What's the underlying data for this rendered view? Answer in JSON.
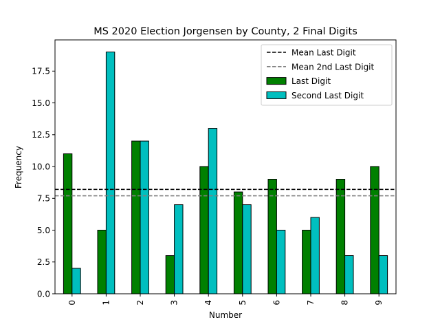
{
  "chart_data": {
    "type": "bar",
    "title": "MS 2020 Election Jorgensen by County, 2 Final Digits",
    "xlabel": "Number",
    "ylabel": "Frequency",
    "categories": [
      "0",
      "1",
      "2",
      "3",
      "4",
      "5",
      "6",
      "7",
      "8",
      "9"
    ],
    "ylim": [
      0,
      19.95
    ],
    "yticks": [
      0.0,
      2.5,
      5.0,
      7.5,
      10.0,
      12.5,
      15.0,
      17.5
    ],
    "ytick_labels": [
      "0.0",
      "2.5",
      "5.0",
      "7.5",
      "10.0",
      "12.5",
      "15.0",
      "17.5"
    ],
    "grid": false,
    "legend_position": "top-right",
    "series": [
      {
        "name": "Last Digit",
        "color": "#008000",
        "values": [
          11,
          5,
          12,
          3,
          10,
          8,
          9,
          5,
          9,
          10
        ]
      },
      {
        "name": "Second Last Digit",
        "color": "#00bfbf",
        "values": [
          2,
          19,
          12,
          7,
          13,
          7,
          5,
          6,
          3,
          3
        ]
      }
    ],
    "reference_lines": [
      {
        "name": "Mean Last Digit",
        "value": 8.2,
        "color": "#000000",
        "style": "dashed"
      },
      {
        "name": "Mean 2nd Last Digit",
        "value": 7.7,
        "color": "#808080",
        "style": "dashed"
      }
    ]
  }
}
